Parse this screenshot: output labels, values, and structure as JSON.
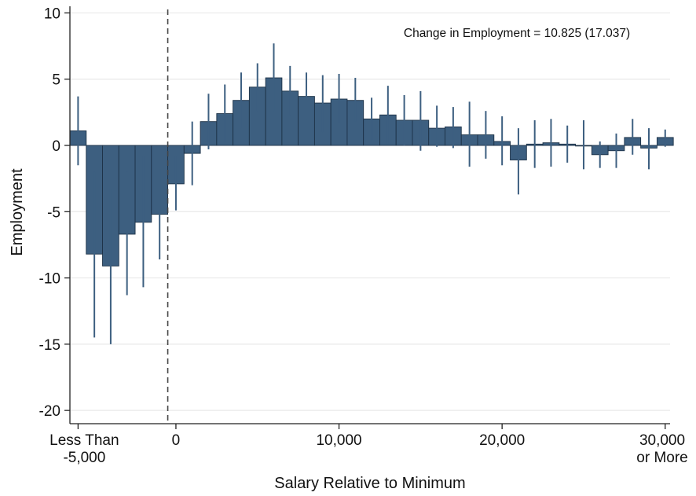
{
  "chart_data": {
    "type": "bar",
    "xlabel": "Salary Relative to Minimum",
    "ylabel": "Employment",
    "annotation": "Change in Employment = 10.825 (17.037)",
    "ylim": [
      -21,
      10.5
    ],
    "xlim": [
      -6500,
      30300
    ],
    "bin_width": 1000,
    "grid": true,
    "reference_line_x": 0,
    "bar_color": "#3d5f80",
    "yticks": [
      {
        "value": 10,
        "label": "10"
      },
      {
        "value": 5,
        "label": "5"
      },
      {
        "value": 0,
        "label": "0"
      },
      {
        "value": -5,
        "label": "-5"
      },
      {
        "value": -10,
        "label": "-10"
      },
      {
        "value": -15,
        "label": "-15"
      },
      {
        "value": -20,
        "label": "-20"
      }
    ],
    "xticks": [
      {
        "value": -6000,
        "lines": [
          "Less Than",
          "-5,000"
        ]
      },
      {
        "value": 0,
        "lines": [
          "0"
        ]
      },
      {
        "value": 10000,
        "lines": [
          "10,000"
        ]
      },
      {
        "value": 20000,
        "lines": [
          "20,000"
        ]
      },
      {
        "value": 30000,
        "lines": [
          "30,000",
          "or More"
        ]
      }
    ],
    "bars": [
      {
        "x": -6000,
        "y": 1.1,
        "ci": [
          -1.5,
          3.7
        ]
      },
      {
        "x": -5000,
        "y": -8.2,
        "ci": [
          -14.5,
          -2.0
        ]
      },
      {
        "x": -4000,
        "y": -9.1,
        "ci": [
          -15.0,
          -3.3
        ]
      },
      {
        "x": -3000,
        "y": -6.7,
        "ci": [
          -11.3,
          -2.0
        ]
      },
      {
        "x": -2000,
        "y": -5.8,
        "ci": [
          -10.7,
          -0.8
        ]
      },
      {
        "x": -1000,
        "y": -5.2,
        "ci": [
          -8.6,
          -1.8
        ]
      },
      {
        "x": 0,
        "y": -2.9,
        "ci": [
          -4.9,
          -0.8
        ]
      },
      {
        "x": 1000,
        "y": -0.6,
        "ci": [
          -3.0,
          1.8
        ]
      },
      {
        "x": 2000,
        "y": 1.8,
        "ci": [
          -0.3,
          3.9
        ]
      },
      {
        "x": 3000,
        "y": 2.4,
        "ci": [
          0.2,
          4.6
        ]
      },
      {
        "x": 4000,
        "y": 3.4,
        "ci": [
          1.3,
          5.5
        ]
      },
      {
        "x": 5000,
        "y": 4.4,
        "ci": [
          2.6,
          6.2
        ]
      },
      {
        "x": 6000,
        "y": 5.1,
        "ci": [
          2.6,
          7.7
        ]
      },
      {
        "x": 7000,
        "y": 4.1,
        "ci": [
          2.3,
          6.0
        ]
      },
      {
        "x": 8000,
        "y": 3.7,
        "ci": [
          2.0,
          5.5
        ]
      },
      {
        "x": 9000,
        "y": 3.2,
        "ci": [
          1.0,
          5.3
        ]
      },
      {
        "x": 10000,
        "y": 3.5,
        "ci": [
          1.7,
          5.4
        ]
      },
      {
        "x": 11000,
        "y": 3.4,
        "ci": [
          1.8,
          5.1
        ]
      },
      {
        "x": 12000,
        "y": 2.0,
        "ci": [
          0.4,
          3.6
        ]
      },
      {
        "x": 13000,
        "y": 2.3,
        "ci": [
          0.1,
          4.5
        ]
      },
      {
        "x": 14000,
        "y": 1.9,
        "ci": [
          0.0,
          3.8
        ]
      },
      {
        "x": 15000,
        "y": 1.9,
        "ci": [
          -0.4,
          4.1
        ]
      },
      {
        "x": 16000,
        "y": 1.3,
        "ci": [
          -0.1,
          3.0
        ]
      },
      {
        "x": 17000,
        "y": 1.4,
        "ci": [
          -0.2,
          2.9
        ]
      },
      {
        "x": 18000,
        "y": 0.8,
        "ci": [
          -1.6,
          3.3
        ]
      },
      {
        "x": 19000,
        "y": 0.8,
        "ci": [
          -1.0,
          2.6
        ]
      },
      {
        "x": 20000,
        "y": 0.3,
        "ci": [
          -1.5,
          2.2
        ]
      },
      {
        "x": 21000,
        "y": -1.1,
        "ci": [
          -3.7,
          1.3
        ]
      },
      {
        "x": 22000,
        "y": 0.1,
        "ci": [
          -1.7,
          1.9
        ]
      },
      {
        "x": 23000,
        "y": 0.2,
        "ci": [
          -1.6,
          2.0
        ]
      },
      {
        "x": 24000,
        "y": 0.1,
        "ci": [
          -1.3,
          1.5
        ]
      },
      {
        "x": 25000,
        "y": 0.0,
        "ci": [
          -1.8,
          1.9
        ]
      },
      {
        "x": 26000,
        "y": -0.7,
        "ci": [
          -1.7,
          0.3
        ]
      },
      {
        "x": 27000,
        "y": -0.4,
        "ci": [
          -1.7,
          0.9
        ]
      },
      {
        "x": 28000,
        "y": 0.6,
        "ci": [
          -0.7,
          2.0
        ]
      },
      {
        "x": 29000,
        "y": -0.2,
        "ci": [
          -1.8,
          1.3
        ]
      },
      {
        "x": 30000,
        "y": 0.6,
        "ci": [
          -0.1,
          1.2
        ]
      }
    ]
  }
}
